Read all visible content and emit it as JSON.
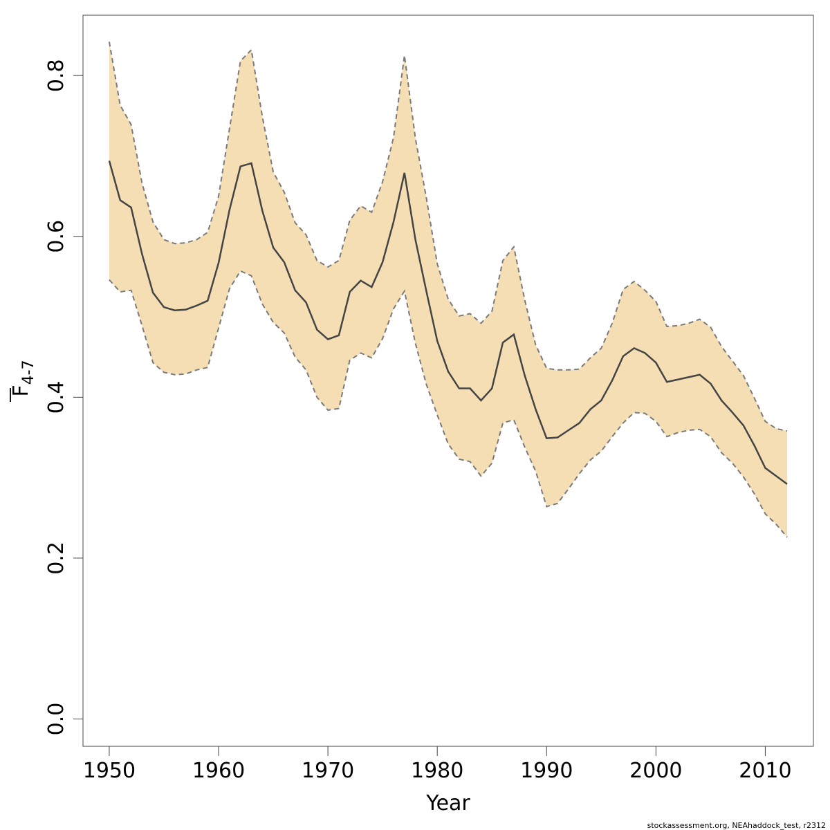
{
  "chart_data": {
    "type": "line",
    "title": "",
    "xlabel": "Year",
    "ylabel": {
      "main": "F",
      "sub": "4-7",
      "overline": true
    },
    "xlim": [
      1947.6,
      2014.4
    ],
    "ylim": [
      -0.034,
      0.875
    ],
    "x_ticks": [
      1950,
      1960,
      1970,
      1980,
      1990,
      2000,
      2010
    ],
    "y_ticks": [
      0.0,
      0.2,
      0.4,
      0.6,
      0.8
    ],
    "y_tick_labels": [
      "0.0",
      "0.2",
      "0.4",
      "0.6",
      "0.8"
    ],
    "grid": false,
    "colors": {
      "band": "#f5deb3",
      "line": "#444444",
      "bounds": "#7a7a7a",
      "axis": "#444444"
    },
    "series": [
      {
        "name": "estimate",
        "style": "solid",
        "x": [
          1950,
          1951,
          1952,
          1953,
          1954,
          1955,
          1956,
          1957,
          1958,
          1959,
          1960,
          1961,
          1962,
          1963,
          1964,
          1965,
          1966,
          1967,
          1968,
          1969,
          1970,
          1971,
          1972,
          1973,
          1974,
          1975,
          1976,
          1977,
          1978,
          1979,
          1980,
          1981,
          1982,
          1983,
          1984,
          1985,
          1986,
          1987,
          1988,
          1989,
          1990,
          1991,
          1992,
          1993,
          1994,
          1995,
          1996,
          1997,
          1998,
          1999,
          2000,
          2001,
          2002,
          2003,
          2004,
          2005,
          2006,
          2007,
          2008,
          2009,
          2010,
          2011,
          2012
        ],
        "values": [
          0.694,
          0.645,
          0.636,
          0.578,
          0.53,
          0.512,
          0.508,
          0.509,
          0.514,
          0.52,
          0.567,
          0.633,
          0.687,
          0.691,
          0.632,
          0.586,
          0.568,
          0.533,
          0.518,
          0.484,
          0.472,
          0.477,
          0.531,
          0.545,
          0.537,
          0.568,
          0.618,
          0.679,
          0.596,
          0.532,
          0.47,
          0.432,
          0.411,
          0.411,
          0.396,
          0.411,
          0.468,
          0.478,
          0.427,
          0.385,
          0.349,
          0.35,
          0.359,
          0.368,
          0.385,
          0.396,
          0.421,
          0.451,
          0.461,
          0.455,
          0.443,
          0.419,
          0.422,
          0.425,
          0.428,
          0.417,
          0.396,
          0.381,
          0.365,
          0.34,
          0.312,
          0.302,
          0.292
        ]
      },
      {
        "name": "upper bound",
        "style": "dashed",
        "x": [
          1950,
          1951,
          1952,
          1953,
          1954,
          1955,
          1956,
          1957,
          1958,
          1959,
          1960,
          1961,
          1962,
          1963,
          1964,
          1965,
          1966,
          1967,
          1968,
          1969,
          1970,
          1971,
          1972,
          1973,
          1974,
          1975,
          1976,
          1977,
          1978,
          1979,
          1980,
          1981,
          1982,
          1983,
          1984,
          1985,
          1986,
          1987,
          1988,
          1989,
          1990,
          1991,
          1992,
          1993,
          1994,
          1995,
          1996,
          1997,
          1998,
          1999,
          2000,
          2001,
          2002,
          2003,
          2004,
          2005,
          2006,
          2007,
          2008,
          2009,
          2010,
          2011,
          2012
        ],
        "values": [
          0.842,
          0.763,
          0.739,
          0.666,
          0.618,
          0.596,
          0.591,
          0.592,
          0.596,
          0.605,
          0.65,
          0.734,
          0.818,
          0.832,
          0.749,
          0.68,
          0.655,
          0.617,
          0.602,
          0.57,
          0.562,
          0.57,
          0.62,
          0.638,
          0.63,
          0.668,
          0.723,
          0.825,
          0.722,
          0.648,
          0.566,
          0.522,
          0.501,
          0.504,
          0.492,
          0.507,
          0.57,
          0.587,
          0.521,
          0.465,
          0.436,
          0.434,
          0.434,
          0.435,
          0.449,
          0.461,
          0.492,
          0.534,
          0.544,
          0.533,
          0.519,
          0.488,
          0.489,
          0.492,
          0.497,
          0.487,
          0.463,
          0.445,
          0.427,
          0.399,
          0.37,
          0.361,
          0.358
        ]
      },
      {
        "name": "lower bound",
        "style": "dashed",
        "x": [
          1950,
          1951,
          1952,
          1953,
          1954,
          1955,
          1956,
          1957,
          1958,
          1959,
          1960,
          1961,
          1962,
          1963,
          1964,
          1965,
          1966,
          1967,
          1968,
          1969,
          1970,
          1971,
          1972,
          1973,
          1974,
          1975,
          1976,
          1977,
          1978,
          1979,
          1980,
          1981,
          1982,
          1983,
          1984,
          1985,
          1986,
          1987,
          1988,
          1989,
          1990,
          1991,
          1992,
          1993,
          1994,
          1995,
          1996,
          1997,
          1998,
          1999,
          2000,
          2001,
          2002,
          2003,
          2004,
          2005,
          2006,
          2007,
          2008,
          2009,
          2010,
          2011,
          2012
        ],
        "values": [
          0.546,
          0.531,
          0.533,
          0.489,
          0.443,
          0.431,
          0.428,
          0.429,
          0.434,
          0.437,
          0.486,
          0.535,
          0.557,
          0.551,
          0.516,
          0.493,
          0.48,
          0.45,
          0.434,
          0.4,
          0.384,
          0.386,
          0.446,
          0.455,
          0.449,
          0.473,
          0.51,
          0.532,
          0.467,
          0.416,
          0.378,
          0.342,
          0.323,
          0.32,
          0.302,
          0.318,
          0.368,
          0.372,
          0.338,
          0.308,
          0.264,
          0.268,
          0.286,
          0.305,
          0.322,
          0.333,
          0.351,
          0.368,
          0.381,
          0.38,
          0.37,
          0.351,
          0.356,
          0.359,
          0.36,
          0.351,
          0.331,
          0.318,
          0.301,
          0.28,
          0.255,
          0.242,
          0.226
        ]
      }
    ],
    "footnote": "stockassessment.org, NEAhaddock_test, r2312"
  }
}
